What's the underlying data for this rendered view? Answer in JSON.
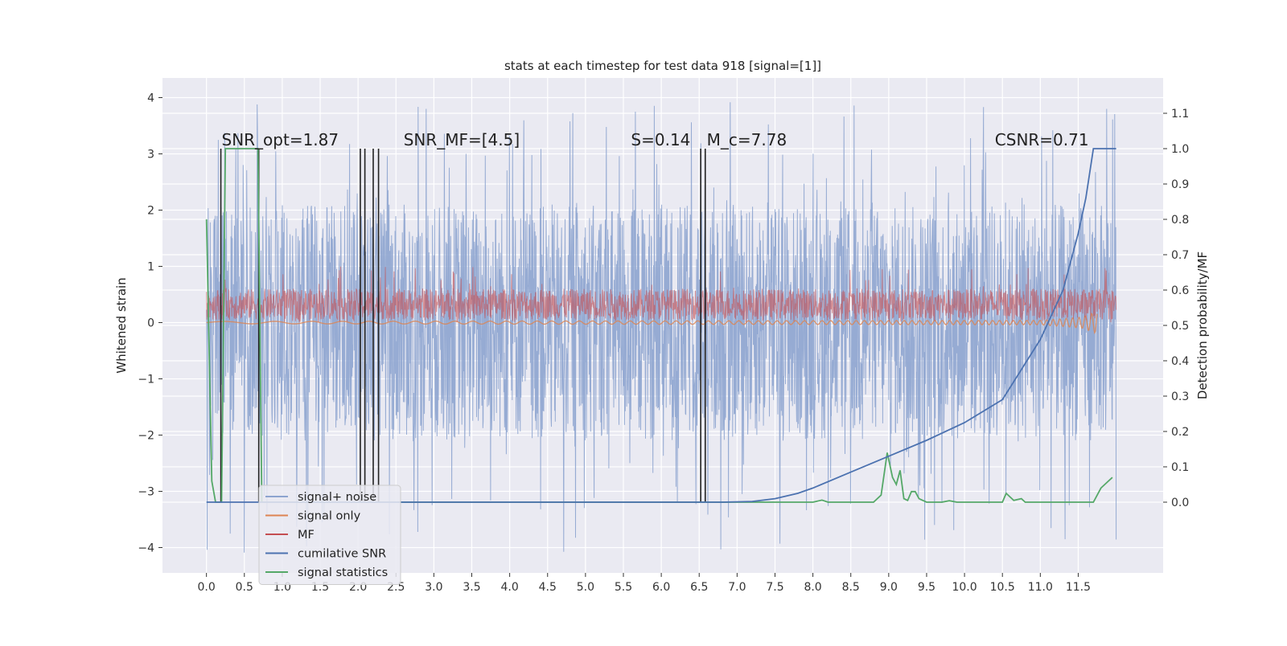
{
  "chart_data": {
    "type": "line",
    "title": "stats at each timestep for test data 918 [signal=[1]]",
    "ylabel": "Whitened strain",
    "y2label": "Detection probability/MF",
    "xlim": [
      -0.58,
      12.62
    ],
    "ylim": [
      -4.45,
      4.35
    ],
    "y2lim": [
      -0.2,
      1.2
    ],
    "grid": true,
    "x_ticks": [
      "0.0",
      "0.5",
      "1.0",
      "1.5",
      "2.0",
      "2.5",
      "3.0",
      "3.5",
      "4.0",
      "4.5",
      "5.0",
      "5.5",
      "6.0",
      "6.5",
      "7.0",
      "7.5",
      "8.0",
      "8.5",
      "9.0",
      "9.5",
      "10.0",
      "10.5",
      "11.0",
      "11.5"
    ],
    "y_ticks": [
      4,
      3,
      2,
      1,
      0,
      -1,
      -2,
      -3,
      -4
    ],
    "y2_ticks": [
      "1.1",
      "1.0",
      "0.9",
      "0.8",
      "0.7",
      "0.6",
      "0.5",
      "0.4",
      "0.3",
      "0.2",
      "0.1",
      "0.0"
    ],
    "legend_position": "lower-left",
    "colors": {
      "signal_noise": "#8da4cf",
      "signal_only": "#dd8452",
      "mf": "#c44e52",
      "cumulative": "#4c72b0",
      "statistics": "#55a868",
      "detections": "#222222"
    },
    "series": [
      {
        "name": "signal+ noise",
        "type": "noise-band",
        "x_range": [
          0.0,
          12.0
        ],
        "center": 0.0,
        "band": [
          -2.1,
          2.1
        ],
        "extremes": [
          -4.1,
          3.95
        ]
      },
      {
        "name": "signal only",
        "type": "chirp",
        "x": [
          0.0,
          11.0,
          11.3,
          11.55,
          11.75
        ],
        "amplitude": [
          0.02,
          0.04,
          0.07,
          0.1,
          0.2
        ]
      },
      {
        "name": "MF",
        "type": "noise-band",
        "x_range": [
          0.0,
          12.0
        ],
        "center": 0.3,
        "band": [
          0.05,
          0.6
        ],
        "extremes": [
          0.0,
          1.0
        ]
      },
      {
        "name": "cumilative SNR",
        "type": "line",
        "axis": "right",
        "x": [
          0.0,
          6.8,
          7.2,
          7.5,
          7.8,
          8.0,
          8.5,
          9.0,
          9.5,
          10.0,
          10.5,
          11.0,
          11.3,
          11.5,
          11.6,
          11.7,
          11.72,
          12.0
        ],
        "y": [
          0.0,
          0.0,
          0.002,
          0.01,
          0.025,
          0.04,
          0.085,
          0.13,
          0.175,
          0.225,
          0.29,
          0.46,
          0.6,
          0.76,
          0.86,
          1.0,
          1.0,
          1.0
        ]
      },
      {
        "name": "signal statistics",
        "type": "line",
        "axis": "right",
        "x": [
          0.0,
          0.07,
          0.12,
          0.2,
          0.25,
          0.3,
          0.6,
          0.68,
          0.73,
          0.8,
          2.0,
          2.4,
          5.5,
          6.0,
          7.0,
          8.0,
          8.12,
          8.2,
          8.6,
          8.8,
          8.9,
          8.98,
          9.05,
          9.1,
          9.15,
          9.2,
          9.25,
          9.3,
          9.35,
          9.4,
          9.5,
          9.7,
          9.8,
          9.9,
          10.5,
          10.55,
          10.65,
          10.75,
          10.8,
          10.85,
          11.0,
          11.5,
          11.7,
          11.8,
          11.9,
          11.95
        ],
        "y": [
          0.8,
          0.06,
          0.0,
          0.0,
          1.0,
          1.0,
          1.0,
          1.0,
          0.0,
          0.0,
          0.0,
          0.0,
          0.0,
          0.0,
          0.0,
          0.0,
          0.006,
          0.0,
          0.0,
          0.0,
          0.02,
          0.14,
          0.07,
          0.05,
          0.09,
          0.01,
          0.005,
          0.03,
          0.03,
          0.01,
          0.0,
          0.0,
          0.004,
          0.0,
          0.0,
          0.025,
          0.005,
          0.01,
          0.0,
          0.0,
          0.0,
          0.0,
          0.0,
          0.04,
          0.06,
          0.07
        ]
      }
    ],
    "detection_markers": [
      0.19,
      0.69,
      2.03,
      2.09,
      2.2,
      2.27,
      6.52,
      6.58
    ],
    "annotations": [
      {
        "name": "snr-opt",
        "text": "SNR_opt=1.87",
        "x": 0.2,
        "y": 3.15
      },
      {
        "name": "snr-mf",
        "text": "SNR_MF=[4.5]",
        "x": 2.6,
        "y": 3.15
      },
      {
        "name": "s-value",
        "text": "S=0.14",
        "x": 5.6,
        "y": 3.15
      },
      {
        "name": "mc-value",
        "text": "M_c=7.78",
        "x": 6.6,
        "y": 3.15
      },
      {
        "name": "csnr",
        "text": "CSNR=0.71",
        "x": 10.4,
        "y": 3.15
      }
    ],
    "legend": [
      "signal+ noise",
      "signal only",
      "MF",
      "cumilative SNR",
      "signal statistics"
    ]
  }
}
